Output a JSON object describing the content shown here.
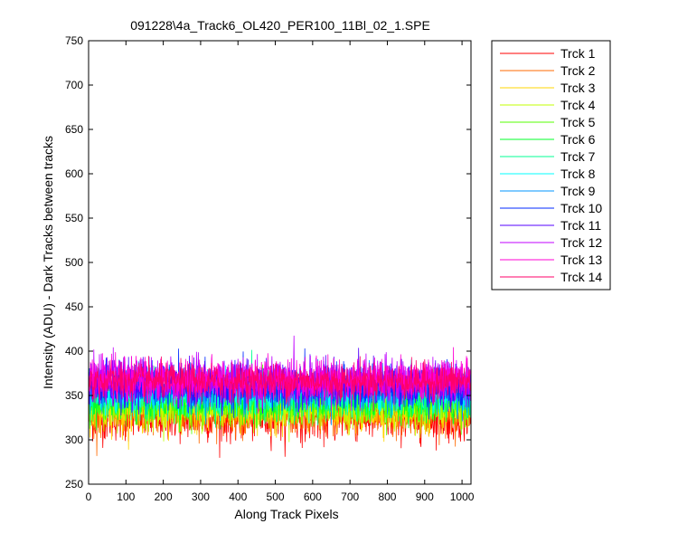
{
  "window": {
    "background": "#ffffff"
  },
  "chart_data": {
    "type": "line",
    "title": "091228\\4a_Track6_OL420_PER100_11Bl_02_1.SPE",
    "xlabel": "Along Track Pixels",
    "ylabel": "Intensity (ADU) - Dark Tracks between tracks",
    "xlim": [
      0,
      1024
    ],
    "ylim": [
      250,
      750
    ],
    "xticks": [
      0,
      100,
      200,
      300,
      400,
      500,
      600,
      700,
      800,
      900,
      1000
    ],
    "yticks": [
      250,
      300,
      350,
      400,
      450,
      500,
      550,
      600,
      650,
      700,
      750
    ],
    "grid": false,
    "legend_position": "outside-top-right",
    "n_points": 1024,
    "series": [
      {
        "name": "Trck 1",
        "color": "#ff0000",
        "mean": 325,
        "noise": 13
      },
      {
        "name": "Trck 2",
        "color": "#ff6a00",
        "mean": 330,
        "noise": 12
      },
      {
        "name": "Trck 3",
        "color": "#ffd500",
        "mean": 334,
        "noise": 12
      },
      {
        "name": "Trck 4",
        "color": "#c0ff00",
        "mean": 338,
        "noise": 12
      },
      {
        "name": "Trck 5",
        "color": "#55ff00",
        "mean": 342,
        "noise": 12
      },
      {
        "name": "Trck 6",
        "color": "#00ff2a",
        "mean": 346,
        "noise": 12
      },
      {
        "name": "Trck 7",
        "color": "#00ff95",
        "mean": 350,
        "noise": 12
      },
      {
        "name": "Trck 8",
        "color": "#00ffff",
        "mean": 354,
        "noise": 12
      },
      {
        "name": "Trck 9",
        "color": "#0095ff",
        "mean": 357,
        "noise": 12
      },
      {
        "name": "Trck 10",
        "color": "#002aff",
        "mean": 360,
        "noise": 12
      },
      {
        "name": "Trck 11",
        "color": "#5500ff",
        "mean": 364,
        "noise": 12
      },
      {
        "name": "Trck 12",
        "color": "#c000ff",
        "mean": 366,
        "noise": 12
      },
      {
        "name": "Trck 13",
        "color": "#ff00d5",
        "mean": 368,
        "noise": 12
      },
      {
        "name": "Trck 14",
        "color": "#ff006a",
        "mean": 366,
        "noise": 10
      }
    ]
  }
}
